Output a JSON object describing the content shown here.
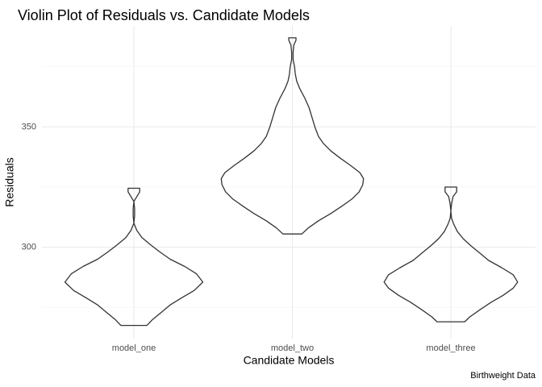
{
  "chart_data": {
    "type": "violin",
    "title": "Violin Plot of Residuals vs. Candidate Models",
    "xlabel": "Candidate Models",
    "ylabel": "Residuals",
    "caption": "Birthweight Data",
    "categories": [
      "model_one",
      "model_two",
      "model_three"
    ],
    "ylim": [
      262,
      392
    ],
    "y_ticks": [
      300,
      350
    ],
    "y_tick_labels": [
      "300",
      "350"
    ],
    "grid": true,
    "line_color": "#333333",
    "series": [
      {
        "category": "model_one",
        "min": 267.5,
        "max": 324.5,
        "density": [
          {
            "y": 267.5,
            "hw": 0.18
          },
          {
            "y": 270.0,
            "hw": 0.26
          },
          {
            "y": 273.0,
            "hw": 0.38
          },
          {
            "y": 276.0,
            "hw": 0.5
          },
          {
            "y": 279.0,
            "hw": 0.66
          },
          {
            "y": 282.0,
            "hw": 0.83
          },
          {
            "y": 285.5,
            "hw": 0.95
          },
          {
            "y": 289.0,
            "hw": 0.86
          },
          {
            "y": 292.0,
            "hw": 0.7
          },
          {
            "y": 295.0,
            "hw": 0.5
          },
          {
            "y": 298.0,
            "hw": 0.36
          },
          {
            "y": 301.0,
            "hw": 0.23
          },
          {
            "y": 304.0,
            "hw": 0.11
          },
          {
            "y": 307.0,
            "hw": 0.04
          },
          {
            "y": 310.0,
            "hw": 0.0
          },
          {
            "y": 313.0,
            "hw": 0.01
          },
          {
            "y": 316.0,
            "hw": 0.01
          },
          {
            "y": 319.0,
            "hw": 0.0
          },
          {
            "y": 321.0,
            "hw": 0.04
          },
          {
            "y": 323.0,
            "hw": 0.08
          },
          {
            "y": 324.5,
            "hw": 0.08
          }
        ]
      },
      {
        "category": "model_two",
        "min": 305.5,
        "max": 387.0,
        "density": [
          {
            "y": 305.5,
            "hw": 0.13
          },
          {
            "y": 308.0,
            "hw": 0.22
          },
          {
            "y": 311.0,
            "hw": 0.36
          },
          {
            "y": 314.0,
            "hw": 0.53
          },
          {
            "y": 317.0,
            "hw": 0.68
          },
          {
            "y": 320.0,
            "hw": 0.82
          },
          {
            "y": 323.0,
            "hw": 0.92
          },
          {
            "y": 326.0,
            "hw": 0.97
          },
          {
            "y": 328.5,
            "hw": 0.98
          },
          {
            "y": 331.0,
            "hw": 0.93
          },
          {
            "y": 334.0,
            "hw": 0.8
          },
          {
            "y": 337.0,
            "hw": 0.66
          },
          {
            "y": 340.0,
            "hw": 0.53
          },
          {
            "y": 343.0,
            "hw": 0.43
          },
          {
            "y": 346.0,
            "hw": 0.36
          },
          {
            "y": 350.0,
            "hw": 0.31
          },
          {
            "y": 354.0,
            "hw": 0.27
          },
          {
            "y": 358.0,
            "hw": 0.23
          },
          {
            "y": 362.0,
            "hw": 0.17
          },
          {
            "y": 366.0,
            "hw": 0.1
          },
          {
            "y": 369.0,
            "hw": 0.06
          },
          {
            "y": 372.0,
            "hw": 0.04
          },
          {
            "y": 375.0,
            "hw": 0.03
          },
          {
            "y": 378.0,
            "hw": 0.01
          },
          {
            "y": 381.0,
            "hw": 0.01
          },
          {
            "y": 384.0,
            "hw": 0.02
          },
          {
            "y": 386.0,
            "hw": 0.05
          },
          {
            "y": 387.0,
            "hw": 0.05
          }
        ]
      },
      {
        "category": "model_three",
        "min": 269.0,
        "max": 325.0,
        "density": [
          {
            "y": 269.0,
            "hw": 0.19
          },
          {
            "y": 271.0,
            "hw": 0.26
          },
          {
            "y": 274.0,
            "hw": 0.4
          },
          {
            "y": 277.0,
            "hw": 0.55
          },
          {
            "y": 280.0,
            "hw": 0.72
          },
          {
            "y": 283.0,
            "hw": 0.86
          },
          {
            "y": 285.5,
            "hw": 0.92
          },
          {
            "y": 288.5,
            "hw": 0.86
          },
          {
            "y": 291.5,
            "hw": 0.7
          },
          {
            "y": 294.5,
            "hw": 0.52
          },
          {
            "y": 297.5,
            "hw": 0.4
          },
          {
            "y": 300.5,
            "hw": 0.28
          },
          {
            "y": 303.5,
            "hw": 0.17
          },
          {
            "y": 306.5,
            "hw": 0.09
          },
          {
            "y": 309.5,
            "hw": 0.04
          },
          {
            "y": 312.0,
            "hw": 0.01
          },
          {
            "y": 315.0,
            "hw": 0.0
          },
          {
            "y": 318.0,
            "hw": 0.01
          },
          {
            "y": 321.0,
            "hw": 0.03
          },
          {
            "y": 323.0,
            "hw": 0.08
          },
          {
            "y": 325.0,
            "hw": 0.08
          }
        ]
      }
    ]
  }
}
